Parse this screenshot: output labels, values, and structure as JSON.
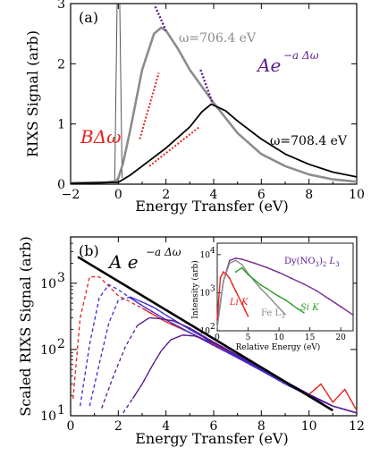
{
  "chart_data": [
    {
      "panel": "(a)",
      "type": "line",
      "xlabel": "Energy Transfer (eV)",
      "ylabel": "RIXS Signal (arb)",
      "xlim": [
        -2,
        10
      ],
      "ylim": [
        0,
        3
      ],
      "xticks": [
        "−2",
        "0",
        "2",
        "4",
        "6",
        "8",
        "10"
      ],
      "yticks": [
        "0",
        "1",
        "2",
        "3"
      ],
      "annotations": {
        "omega1": "ω=706.4 eV",
        "omega2": "ω=708.4 eV",
        "exp_law": "Ae",
        "exp_sup": "−a Δω",
        "linear_law": "BΔω"
      },
      "colors": {
        "omega1": "#8c8c8c",
        "omega2": "#000000",
        "exp": "#5b1a8f",
        "linear": "#e8211c"
      },
      "series": [
        {
          "name": "ω=706.4 eV",
          "x": [
            -2,
            -1,
            -0.5,
            -0.1,
            0,
            0.2,
            0.5,
            1,
            1.5,
            1.8,
            2,
            2.5,
            3,
            4,
            5,
            6,
            7,
            8,
            9,
            10
          ],
          "y": [
            0.02,
            0.03,
            0.03,
            0.05,
            0.1,
            0.35,
            0.9,
            1.9,
            2.5,
            2.6,
            2.55,
            2.25,
            1.9,
            1.35,
            0.85,
            0.5,
            0.3,
            0.16,
            0.08,
            0.04
          ]
        },
        {
          "name": "ω=708.4 eV",
          "x": [
            -2,
            -1,
            -0.3,
            0,
            0.5,
            1,
            2,
            3,
            3.5,
            3.9,
            4.5,
            5,
            6,
            7,
            8,
            9,
            10
          ],
          "y": [
            0.01,
            0.02,
            0.03,
            0.03,
            0.15,
            0.3,
            0.6,
            0.95,
            1.2,
            1.33,
            1.22,
            1.05,
            0.75,
            0.5,
            0.33,
            0.2,
            0.12
          ]
        }
      ],
      "elastic_peak": {
        "x": 0,
        "y_top": 3
      }
    },
    {
      "panel": "(b)",
      "type": "line",
      "scale": "log",
      "xlabel": "Energy Transfer (eV)",
      "ylabel": "Scaled RIXS Signal (arb)",
      "xlim": [
        0,
        12
      ],
      "ylim": [
        10,
        5000
      ],
      "xticks": [
        "0",
        "2",
        "4",
        "6",
        "8",
        "10",
        "12"
      ],
      "yticks_major": [
        "10",
        "10",
        "10"
      ],
      "ytick_exponents": [
        "1",
        "2",
        "3"
      ],
      "fit_label": "A e",
      "fit_sup": "−a Δω",
      "fit": {
        "x": [
          0.3,
          11.0
        ],
        "y": [
          2500,
          12
        ]
      },
      "series": [
        {
          "color": "#e8211c",
          "x": [
            0.1,
            0.4,
            0.8,
            1.2,
            1.6,
            2,
            3,
            4,
            5,
            6,
            7,
            8,
            9,
            10,
            10.5,
            11,
            11.5,
            12
          ],
          "y": [
            18,
            300,
            1250,
            1250,
            900,
            650,
            420,
            260,
            180,
            120,
            75,
            48,
            32,
            21,
            30,
            16,
            25,
            12
          ]
        },
        {
          "color": "#3b2bd1",
          "x": [
            0.4,
            0.8,
            1.2,
            1.6,
            2,
            2.5,
            3,
            4,
            5,
            6,
            7,
            8,
            9,
            10,
            11,
            12
          ],
          "y": [
            14,
            120,
            600,
            950,
            800,
            600,
            460,
            280,
            180,
            115,
            75,
            48,
            30,
            20,
            14,
            11
          ]
        },
        {
          "color": "#3b2bd1",
          "x": [
            0.8,
            1.2,
            1.6,
            2,
            2.5,
            3,
            3.5,
            4,
            5,
            6,
            7,
            8,
            9,
            10,
            11,
            12
          ],
          "y": [
            14,
            60,
            250,
            550,
            620,
            520,
            430,
            330,
            200,
            125,
            78,
            50,
            32,
            21,
            14,
            11
          ]
        },
        {
          "color": "#5b1a8f",
          "x": [
            1.3,
            1.8,
            2.3,
            2.8,
            3.3,
            3.8,
            4.3,
            5,
            6,
            7,
            8,
            9,
            10,
            11,
            12
          ],
          "y": [
            13,
            40,
            110,
            230,
            300,
            290,
            270,
            210,
            130,
            82,
            52,
            33,
            21,
            14,
            11
          ]
        },
        {
          "color": "#5b1a8f",
          "x": [
            2.2,
            2.6,
            3,
            3.4,
            3.8,
            4.2,
            4.7,
            5.2,
            6,
            7,
            8,
            9,
            10,
            11,
            12
          ],
          "y": [
            11,
            18,
            30,
            55,
            95,
            140,
            165,
            160,
            125,
            82,
            52,
            33,
            21,
            14,
            11
          ]
        }
      ],
      "inset": {
        "xlabel": "Relative Energy (eV)",
        "ylabel": "Intensity (arb)",
        "xlim": [
          0,
          22
        ],
        "ylim": [
          100,
          20000
        ],
        "xticks": [
          "0",
          "5",
          "10",
          "15",
          "20"
        ],
        "ytick_base": "10",
        "ytick_exponents": [
          "2",
          "3",
          "4"
        ],
        "labels": {
          "dy_prefix": "Dy(NO",
          "dy_sub1": "3",
          "dy_mid": ")",
          "dy_sub2": "2",
          "dy_suffix": " L",
          "dy_sub3": "3",
          "li": "Li K",
          "fe": "Fe L",
          "fe_sub": "3",
          "si": "Si K"
        },
        "series": [
          {
            "name": "Dy",
            "color": "#7a2a8f",
            "x": [
              0,
              1,
              2,
              3,
              4,
              6,
              8,
              10,
              12,
              14,
              16,
              18,
              20,
              22
            ],
            "y": [
              150,
              2000,
              7000,
              8000,
              7600,
              6000,
              4600,
              3400,
              2400,
              1700,
              1150,
              700,
              430,
              260
            ]
          },
          {
            "name": "Fe",
            "color": "#8c8c8c",
            "x": [
              0,
              0.5,
              1,
              2,
              3,
              4,
              5,
              6,
              7,
              8,
              9,
              10,
              11
            ],
            "y": [
              120,
              500,
              2000,
              6000,
              7000,
              5500,
              3200,
              2000,
              1300,
              900,
              600,
              400,
              270
            ]
          },
          {
            "name": "Si",
            "color": "#2aa02a",
            "x": [
              3,
              4,
              5,
              6,
              7,
              8,
              9,
              10,
              11,
              12,
              13,
              14
            ],
            "y": [
              3500,
              4500,
              3000,
              2200,
              1600,
              1300,
              1000,
              800,
              650,
              500,
              380,
              300
            ]
          },
          {
            "name": "Li",
            "color": "#e8211c",
            "x": [
              0,
              0.5,
              1,
              1.5,
              2,
              2.5,
              3,
              4,
              4.5,
              5
            ],
            "y": [
              200,
              2500,
              3500,
              3000,
              2400,
              1600,
              1100,
              520,
              350,
              240
            ]
          }
        ]
      }
    }
  ]
}
